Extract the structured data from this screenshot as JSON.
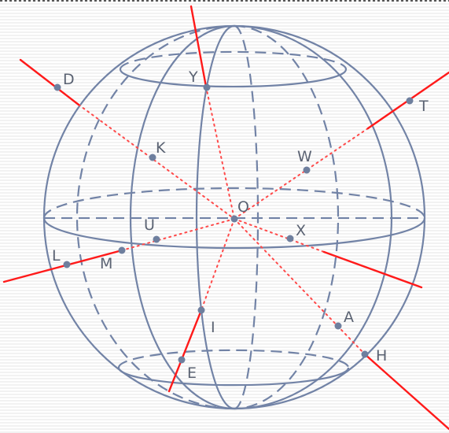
{
  "figure": {
    "labels": {
      "D": "D",
      "Y": "Y",
      "T": "T",
      "K": "K",
      "W": "W",
      "O": "O",
      "U": "U",
      "X": "X",
      "L": "L",
      "M": "M",
      "A": "A",
      "I": "I",
      "H": "H",
      "E": "E"
    }
  },
  "colors": {
    "sphere": "#7283a6",
    "line": "#ff1a1a",
    "dotted": "#ff4a4a",
    "point": "#6e7f9e",
    "label": "#5a6272",
    "border": "#222222",
    "stripe": "#f2f2f2"
  }
}
